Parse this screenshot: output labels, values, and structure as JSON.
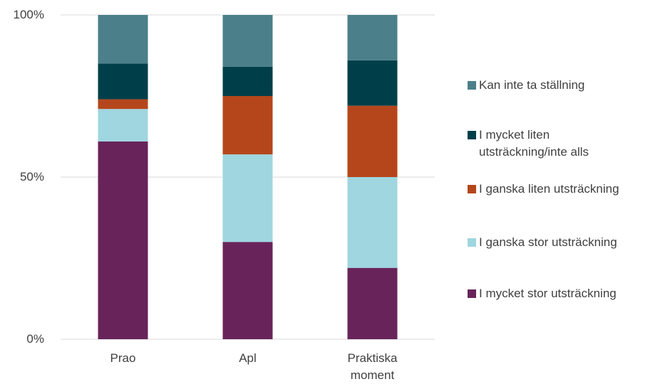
{
  "chart_data": {
    "type": "stacked_bar",
    "categories": [
      "Prao",
      "Apl",
      "Praktiska moment"
    ],
    "series": [
      {
        "name": "I mycket stor utsträckning",
        "color": "#68245a",
        "values": [
          61,
          30,
          22
        ]
      },
      {
        "name": "I ganska stor utsträckning",
        "color": "#9fd6e0",
        "values": [
          10,
          27,
          28
        ]
      },
      {
        "name": "I ganska liten utsträckning",
        "color": "#b5461b",
        "values": [
          3,
          18,
          22
        ]
      },
      {
        "name": "I mycket liten utsträckning/inte alls",
        "color": "#003f4a",
        "values": [
          11,
          9,
          14
        ]
      },
      {
        "name": "Kan inte ta ställning",
        "color": "#4b7f8a",
        "values": [
          15,
          16,
          14
        ]
      }
    ],
    "ylim": [
      0,
      100
    ],
    "yticks": [
      {
        "value": 0,
        "label": "0%"
      },
      {
        "value": 50,
        "label": "50%"
      },
      {
        "value": 100,
        "label": "100%"
      }
    ],
    "grid": true,
    "legend": "right"
  }
}
